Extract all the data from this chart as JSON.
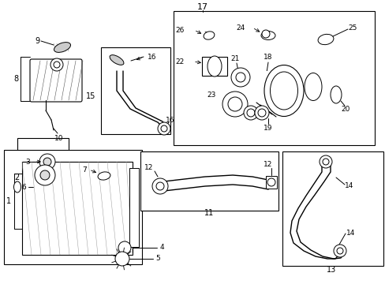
{
  "bg_color": "#ffffff",
  "fig_width": 4.89,
  "fig_height": 3.6,
  "dpi": 100,
  "lc": "black",
  "lw": 0.7
}
